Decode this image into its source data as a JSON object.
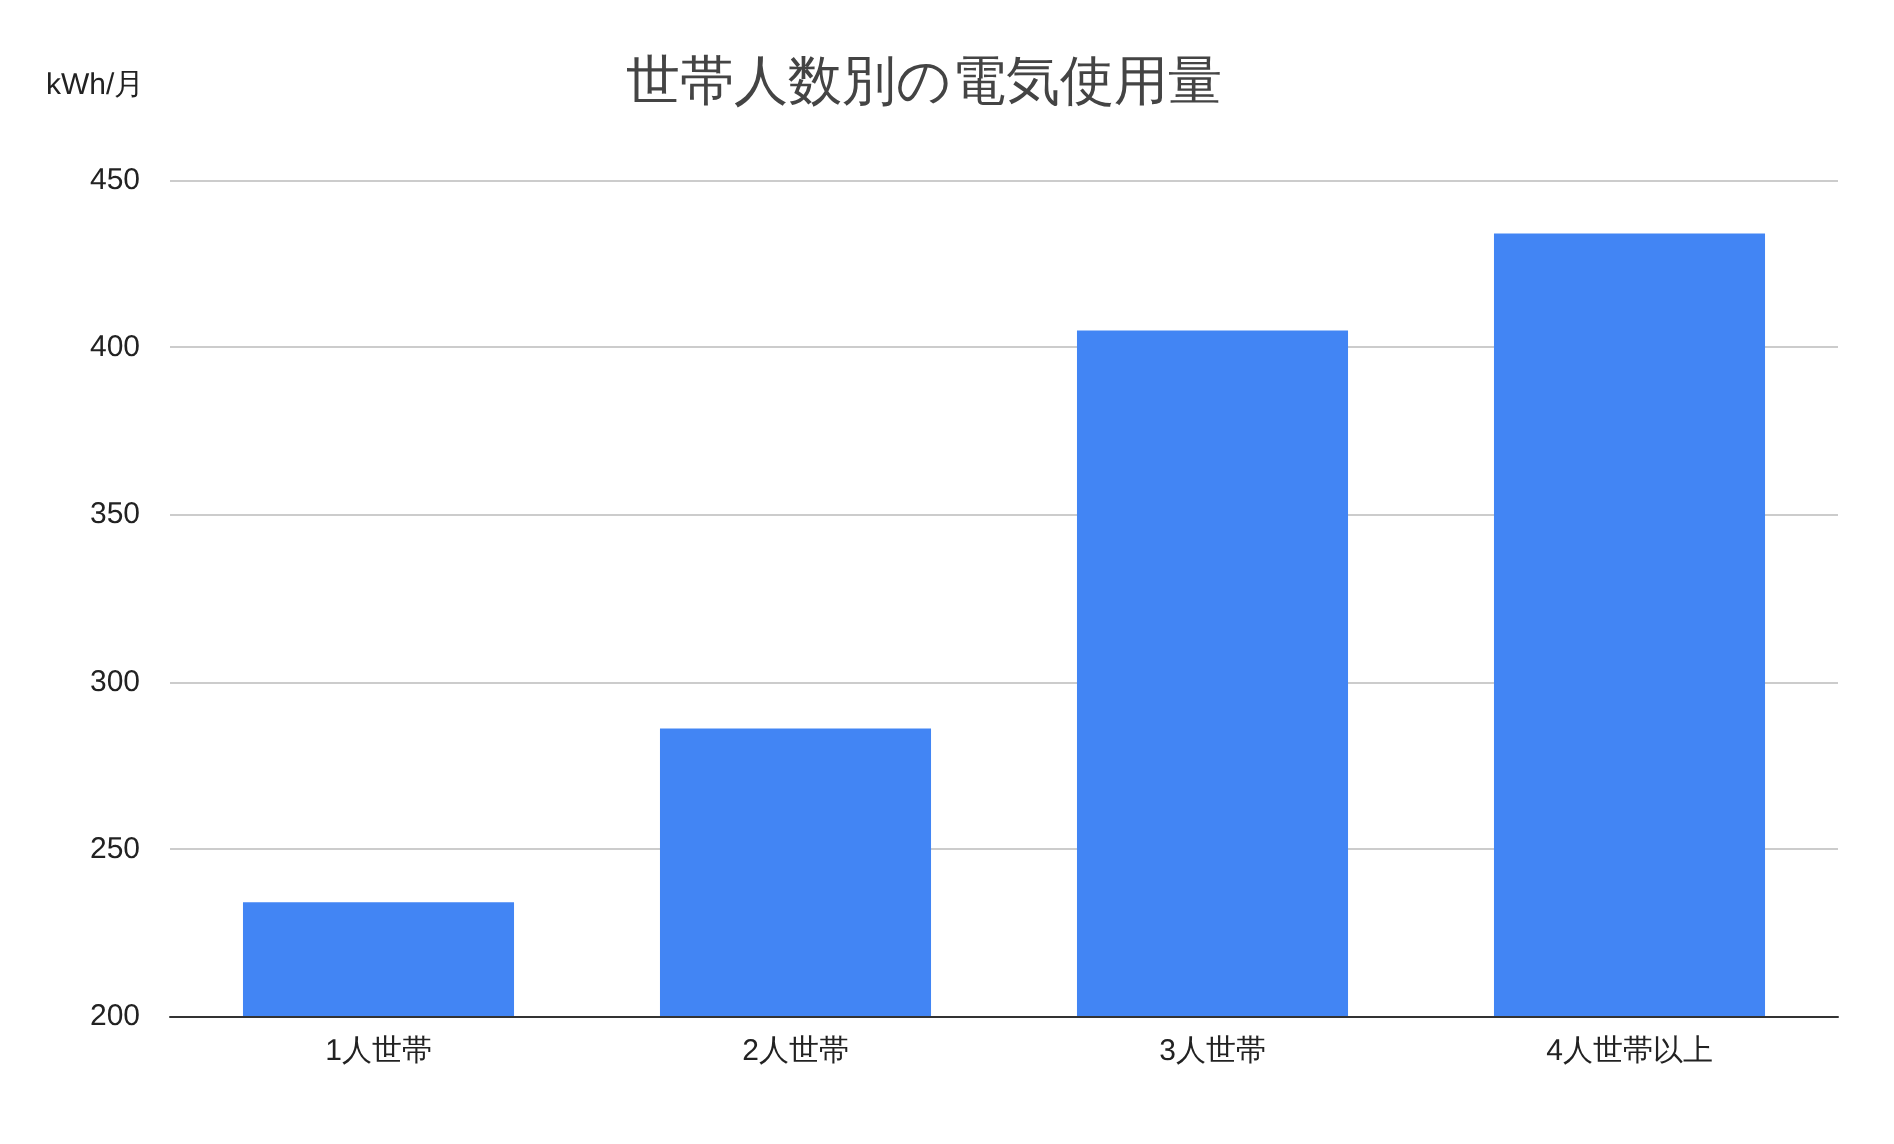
{
  "chart_data": {
    "type": "bar",
    "title": "世帯人数別の電気使用量",
    "ylabel": "kWh/月",
    "categories": [
      "1人世帯",
      "2人世帯",
      "3人世帯",
      "4人世帯以上"
    ],
    "values": [
      234,
      286,
      405,
      434
    ],
    "color": "#4285f4",
    "ylim": [
      200,
      450
    ],
    "yticks": [
      200,
      250,
      300,
      350,
      400,
      450
    ],
    "grid": "y"
  }
}
